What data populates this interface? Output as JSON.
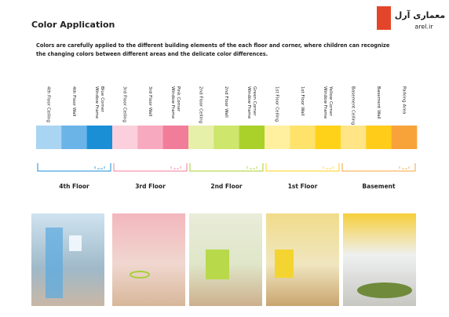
{
  "header": {
    "title": "Color Application",
    "description": [
      "Colors are carefully applied to the different building elements of the each floor and corner, where children can recognize",
      "the changing colors between different areas and the delicate color differences."
    ]
  },
  "logo": {
    "name": "معماری آرل",
    "url": "arel.ir"
  },
  "groups": [
    {
      "name": "4th Floor",
      "color": "#1a8fd6",
      "items": [
        {
          "label": [
            "4th Floor Ceiling"
          ],
          "color": "#a9d4f2"
        },
        {
          "label": [
            "4th Floor Wall"
          ],
          "color": "#6ab4e8"
        },
        {
          "label": [
            "Window Frame",
            "Blue Corner"
          ],
          "color": "#1a8fd6"
        }
      ]
    },
    {
      "name": "3rd Floor",
      "color": "#f27d9b",
      "items": [
        {
          "label": [
            "3rd Floor Ceiling"
          ],
          "color": "#fbd0dc"
        },
        {
          "label": [
            "3rd Floor Wall"
          ],
          "color": "#f7a9bf"
        },
        {
          "label": [
            "Window Frame",
            "Pink Corner"
          ],
          "color": "#f27d9b"
        }
      ]
    },
    {
      "name": "2nd Floor",
      "color": "#a9d12a",
      "items": [
        {
          "label": [
            "2nd Floor Ceiling"
          ],
          "color": "#e6f0a9"
        },
        {
          "label": [
            "2nd Floor Wall"
          ],
          "color": "#cde66b"
        },
        {
          "label": [
            "Window Frame",
            "Green Corner"
          ],
          "color": "#a9d12a"
        }
      ]
    },
    {
      "name": "1st Floor",
      "color": "#ffd21a",
      "items": [
        {
          "label": [
            "1st Floor Ceiling"
          ],
          "color": "#fff0a0"
        },
        {
          "label": [
            "1st Floor Wall"
          ],
          "color": "#ffe26a"
        },
        {
          "label": [
            "Window Frame",
            "Yellow Corner"
          ],
          "color": "#ffd21a"
        }
      ]
    },
    {
      "name": "Basement",
      "color": "#f7a33a",
      "items": [
        {
          "label": [
            "Basement Ceiling"
          ],
          "color": "#ffe585"
        },
        {
          "label": [
            "Basement Wall"
          ],
          "color": "#ffcc1a"
        },
        {
          "label": [
            "Parking Area"
          ],
          "color": "#f7a33a"
        }
      ]
    }
  ]
}
